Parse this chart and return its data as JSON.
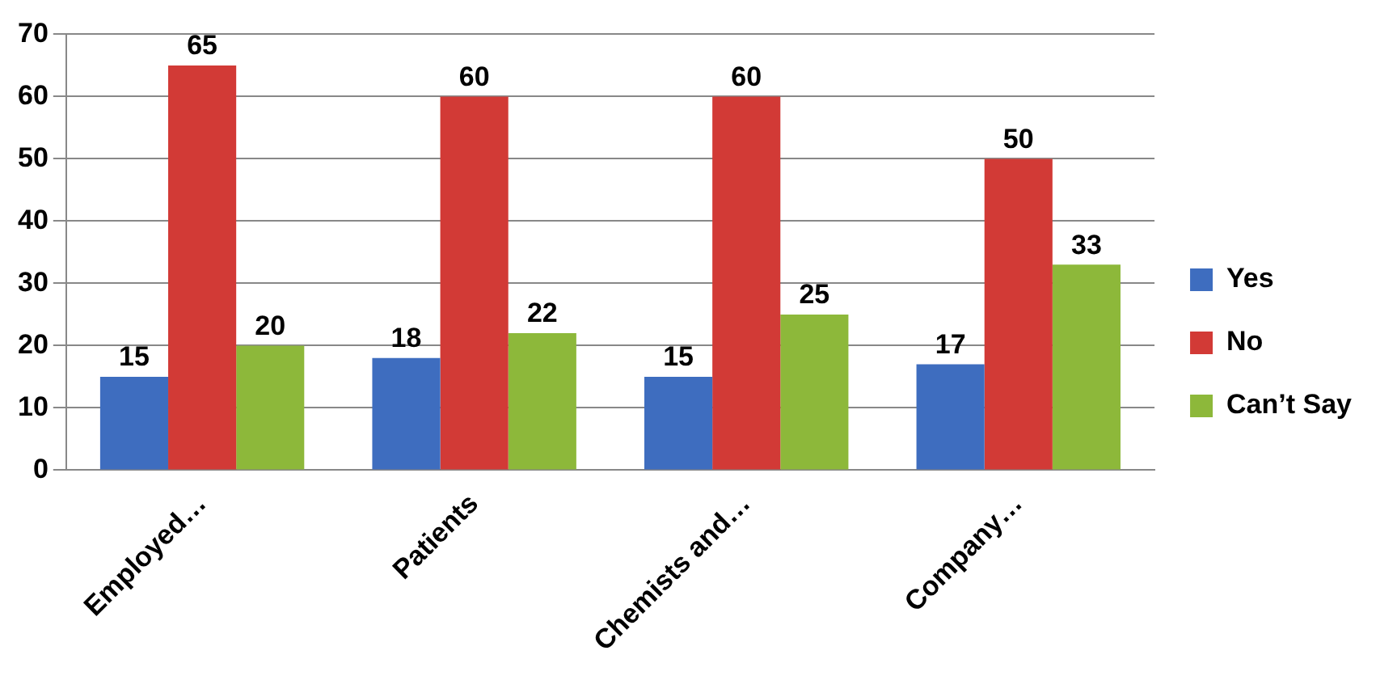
{
  "chart_data": {
    "type": "bar",
    "categories": [
      "Employed…",
      "Patients",
      "Chemists and…",
      "Company…"
    ],
    "series": [
      {
        "name": "Yes",
        "color": "#3e6dbf",
        "values": [
          15,
          18,
          15,
          17
        ]
      },
      {
        "name": "No",
        "color": "#d23a36",
        "values": [
          65,
          60,
          60,
          50
        ]
      },
      {
        "name": "Can’t Say",
        "color": "#8db83a",
        "values": [
          20,
          22,
          25,
          33
        ]
      }
    ],
    "ylim": [
      0,
      70
    ],
    "yticks": [
      0,
      10,
      20,
      30,
      40,
      50,
      60,
      70
    ],
    "grid": "y",
    "legend": "right",
    "data_labels": true
  }
}
